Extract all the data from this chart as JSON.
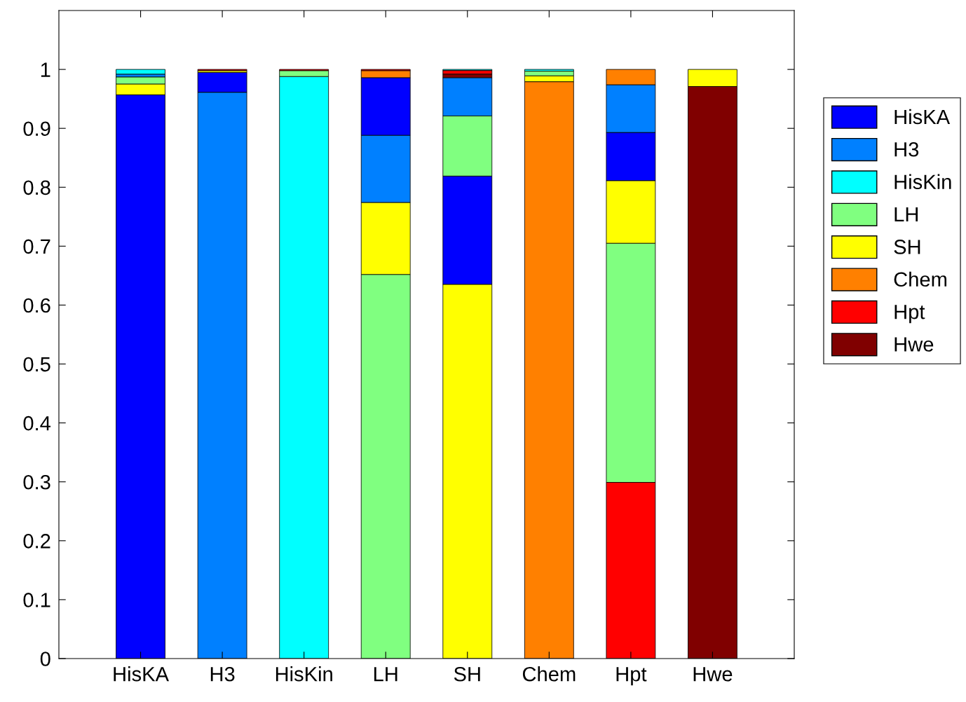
{
  "chart_data": {
    "type": "bar",
    "categories": [
      "HisKA",
      "H3",
      "HisKin",
      "LH",
      "SH",
      "Chem",
      "Hpt",
      "Hwe"
    ],
    "ylim": [
      0,
      1.1
    ],
    "yticks": [
      0,
      0.1,
      0.2,
      0.3,
      0.4,
      0.5,
      0.6,
      0.7,
      0.8,
      0.9,
      1
    ],
    "grid": false,
    "legend": "right",
    "series": [
      {
        "name": "HisKA",
        "color": "#0000ff",
        "values": [
          0.957,
          0.034,
          null,
          0.098,
          0.184,
          null,
          0.082,
          null
        ],
        "base": [
          0,
          0.961,
          null,
          0.888,
          0.635,
          null,
          0.811,
          null
        ]
      },
      {
        "name": "H3",
        "color": "#0080ff",
        "values": [
          0.005,
          0.961,
          null,
          0.114,
          0.065,
          null,
          0.081,
          null
        ],
        "base": [
          0.987,
          0,
          null,
          0.774,
          0.921,
          null,
          0.893,
          null
        ]
      },
      {
        "name": "HisKin",
        "color": "#00ffff",
        "values": [
          0.008,
          null,
          0.988,
          null,
          0.002,
          0.003,
          null,
          null
        ],
        "base": [
          0.992,
          null,
          0,
          null,
          0.998,
          0.997,
          null,
          null
        ]
      },
      {
        "name": "LH",
        "color": "#80ff80",
        "values": [
          0.012,
          null,
          0.01,
          0.652,
          0.102,
          0.008,
          0.406,
          null
        ],
        "base": [
          0.975,
          null,
          0.988,
          0,
          0.819,
          0.989,
          0.299,
          null
        ]
      },
      {
        "name": "SH",
        "color": "#ffff00",
        "values": [
          0.018,
          0.003,
          null,
          0.122,
          0.635,
          0.01,
          0.106,
          0.029
        ],
        "base": [
          0.957,
          0.995,
          null,
          0.652,
          0,
          0.979,
          0.705,
          0.971
        ]
      },
      {
        "name": "Chem",
        "color": "#ff8000",
        "values": [
          null,
          null,
          null,
          0.012,
          null,
          0.979,
          0.026,
          null
        ],
        "base": [
          null,
          null,
          null,
          0.986,
          null,
          0,
          0.974,
          null
        ]
      },
      {
        "name": "Hpt",
        "color": "#ff0000",
        "values": [
          null,
          0.002,
          0.002,
          0.002,
          0.006,
          null,
          0.299,
          null
        ],
        "base": [
          null,
          0.998,
          0.998,
          0.998,
          0.992,
          null,
          0,
          null
        ]
      },
      {
        "name": "Hwe",
        "color": "#800000",
        "values": [
          null,
          null,
          null,
          null,
          0.006,
          null,
          null,
          0.971
        ],
        "base": [
          null,
          null,
          null,
          null,
          0.986,
          null,
          null,
          0
        ]
      }
    ]
  }
}
